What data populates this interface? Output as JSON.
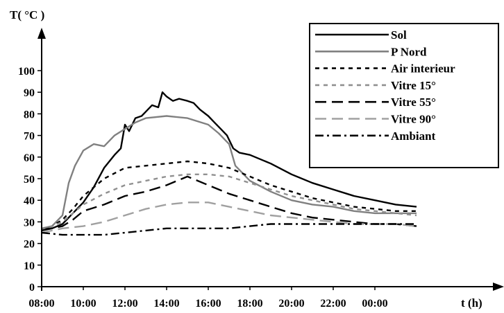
{
  "chart_data": {
    "type": "line",
    "ylabel": "T( °C )",
    "xlabel": "t (h)",
    "ylim": [
      0,
      100
    ],
    "yticks": [
      0,
      10,
      20,
      30,
      40,
      50,
      60,
      70,
      80,
      90,
      100
    ],
    "xticks": [
      "08:00",
      "10:00",
      "12:00",
      "14:00",
      "16:00",
      "18:00",
      "20:00",
      "22:00",
      "00:00"
    ],
    "x_hours_start": 8,
    "grid": false,
    "legend_position": "top-right",
    "series": [
      {
        "name": "Sol",
        "color": "#000000",
        "dash": "solid",
        "x": [
          8.0,
          8.5,
          9.0,
          9.5,
          10.0,
          10.5,
          11.0,
          11.5,
          11.8,
          12.0,
          12.2,
          12.5,
          12.8,
          13.0,
          13.3,
          13.6,
          13.8,
          14.0,
          14.3,
          14.6,
          15.0,
          15.3,
          15.6,
          16.0,
          16.3,
          16.6,
          16.9,
          17.2,
          17.5,
          18.0,
          19.0,
          20.0,
          21.0,
          22.0,
          23.0,
          24.0,
          25.0,
          26.0
        ],
        "y": [
          27,
          27,
          29,
          34,
          39,
          46,
          55,
          61,
          64,
          75,
          72,
          78,
          79,
          81,
          84,
          83,
          90,
          88,
          86,
          87,
          86,
          85,
          82,
          79,
          76,
          73,
          70,
          64,
          62,
          61,
          57,
          52,
          48,
          45,
          42,
          40,
          38,
          37
        ]
      },
      {
        "name": "P Nord",
        "color": "#808080",
        "dash": "solid",
        "x": [
          8.0,
          8.5,
          9.0,
          9.3,
          9.6,
          10.0,
          10.5,
          11.0,
          11.5,
          12.0,
          12.5,
          13.0,
          14.0,
          15.0,
          16.0,
          16.5,
          17.0,
          17.3,
          17.6,
          18.0,
          19.0,
          20.0,
          21.0,
          22.0,
          23.0,
          24.0,
          25.0,
          26.0
        ],
        "y": [
          27,
          28,
          33,
          48,
          56,
          63,
          66,
          65,
          70,
          73,
          76,
          78,
          79,
          78,
          75,
          71,
          66,
          56,
          53,
          49,
          44,
          40,
          38,
          37,
          35,
          34,
          34,
          34
        ]
      },
      {
        "name": "Air interieur",
        "color": "#000000",
        "dash": "short",
        "x": [
          8.0,
          8.5,
          9.0,
          9.5,
          10.0,
          11.0,
          12.0,
          13.0,
          14.0,
          15.0,
          16.0,
          17.0,
          18.0,
          19.0,
          20.0,
          21.0,
          22.0,
          23.0,
          24.0,
          25.0,
          26.0
        ],
        "y": [
          26,
          28,
          31,
          36,
          42,
          50,
          55,
          56,
          57,
          58,
          57,
          55,
          51,
          47,
          44,
          41,
          39,
          37,
          36,
          35,
          35
        ]
      },
      {
        "name": "Vitre 15°",
        "color": "#909090",
        "dash": "short",
        "x": [
          8.0,
          8.5,
          9.0,
          9.5,
          10.0,
          11.0,
          12.0,
          13.0,
          14.0,
          15.0,
          16.0,
          17.0,
          18.0,
          19.0,
          20.0,
          21.0,
          22.0,
          23.0,
          24.0,
          25.0,
          26.0
        ],
        "y": [
          26,
          28,
          30,
          34,
          38,
          43,
          47,
          49,
          51,
          52,
          52,
          51,
          48,
          45,
          42,
          40,
          38,
          36,
          35,
          34,
          33
        ]
      },
      {
        "name": "Vitre 55°",
        "color": "#000000",
        "dash": "long",
        "x": [
          8.0,
          8.5,
          9.0,
          9.5,
          10.0,
          11.0,
          12.0,
          13.0,
          14.0,
          14.5,
          15.0,
          15.5,
          16.0,
          17.0,
          18.0,
          19.0,
          20.0,
          21.0,
          22.0,
          23.0,
          24.0,
          25.0,
          26.0
        ],
        "y": [
          26,
          27,
          28,
          31,
          35,
          38,
          42,
          44,
          47,
          49,
          51,
          49,
          47,
          43,
          40,
          37,
          34,
          32,
          31,
          30,
          29,
          29,
          28
        ]
      },
      {
        "name": "Vitre 90°",
        "color": "#a0a0a0",
        "dash": "long",
        "x": [
          8.0,
          9.0,
          10.0,
          11.0,
          12.0,
          13.0,
          14.0,
          15.0,
          16.0,
          17.0,
          18.0,
          19.0,
          20.0,
          21.0,
          22.0,
          23.0,
          24.0,
          25.0,
          26.0
        ],
        "y": [
          25,
          27,
          28,
          30,
          33,
          36,
          38,
          39,
          39,
          37,
          35,
          33,
          32,
          31,
          30,
          29,
          29,
          29,
          28
        ]
      },
      {
        "name": "Ambiant",
        "color": "#000000",
        "dash": "dashdot",
        "x": [
          8.0,
          9.0,
          10.0,
          11.0,
          12.0,
          13.0,
          14.0,
          15.0,
          16.0,
          17.0,
          18.0,
          19.0,
          20.0,
          21.0,
          22.0,
          23.0,
          24.0,
          25.0,
          26.0
        ],
        "y": [
          25,
          24,
          24,
          24,
          25,
          26,
          27,
          27,
          27,
          27,
          28,
          29,
          29,
          29,
          29,
          29,
          29,
          29,
          29
        ]
      }
    ]
  }
}
